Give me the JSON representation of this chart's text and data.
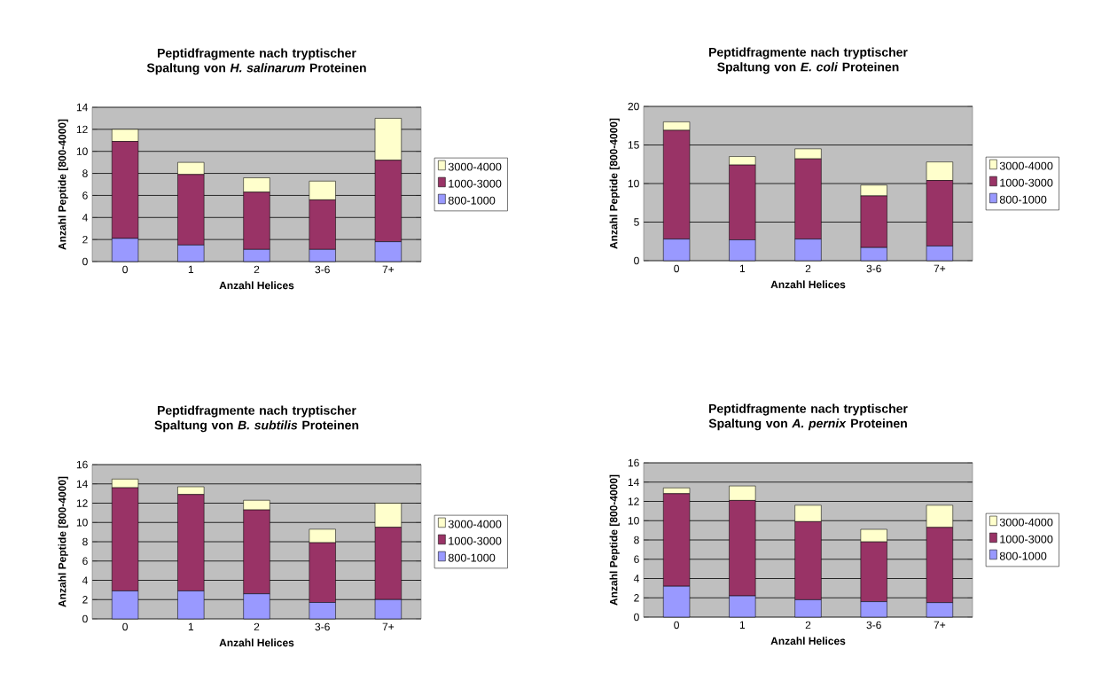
{
  "chart_data": [
    {
      "type": "bar",
      "stacked": true,
      "title": "Peptidfragmente nach tryptischer Spaltung von *H. salinarum* Proteinen",
      "xlabel": "Anzahl Helices",
      "ylabel": "Anzahl Peptide [800-4000]",
      "categories": [
        "0",
        "1",
        "2",
        "3-6",
        "7+"
      ],
      "ylim": [
        0,
        14
      ],
      "yticks": [
        0,
        2,
        4,
        6,
        8,
        10,
        12,
        14
      ],
      "grid": "y",
      "legend": "right",
      "series": [
        {
          "name": "800-1000",
          "color": "#9999ff",
          "values": [
            2.1,
            1.5,
            1.1,
            1.1,
            1.8
          ]
        },
        {
          "name": "1000-3000",
          "color": "#993366",
          "values": [
            8.8,
            6.4,
            5.2,
            4.5,
            7.4
          ]
        },
        {
          "name": "3000-4000",
          "color": "#ffffcc",
          "values": [
            1.1,
            1.1,
            1.3,
            1.7,
            3.8
          ]
        }
      ]
    },
    {
      "type": "bar",
      "stacked": true,
      "title": "Peptidfragmente nach tryptischer Spaltung von *E. coli* Proteinen",
      "xlabel": "Anzahl Helices",
      "ylabel": "Anzahl Peptide [800-4000]",
      "categories": [
        "0",
        "1",
        "2",
        "3-6",
        "7+"
      ],
      "ylim": [
        0,
        20
      ],
      "yticks": [
        0,
        5,
        10,
        15,
        20
      ],
      "grid": "y",
      "legend": "right",
      "series": [
        {
          "name": "800-1000",
          "color": "#9999ff",
          "values": [
            2.8,
            2.7,
            2.8,
            1.7,
            1.9
          ]
        },
        {
          "name": "1000-3000",
          "color": "#993366",
          "values": [
            14.1,
            9.7,
            10.4,
            6.7,
            8.5
          ]
        },
        {
          "name": "3000-4000",
          "color": "#ffffcc",
          "values": [
            1.1,
            1.1,
            1.3,
            1.4,
            2.4
          ]
        }
      ]
    },
    {
      "type": "bar",
      "stacked": true,
      "title": "Peptidfragmente nach tryptischer Spaltung von *B. subtilis* Proteinen",
      "xlabel": "Anzahl Helices",
      "ylabel": "Anzahl Peptide [800-4000]",
      "categories": [
        "0",
        "1",
        "2",
        "3-6",
        "7+"
      ],
      "ylim": [
        0,
        16
      ],
      "yticks": [
        0,
        2,
        4,
        6,
        8,
        10,
        12,
        14,
        16
      ],
      "grid": "y",
      "legend": "right",
      "series": [
        {
          "name": "800-1000",
          "color": "#9999ff",
          "values": [
            2.9,
            2.9,
            2.6,
            1.7,
            2.0
          ]
        },
        {
          "name": "1000-3000",
          "color": "#993366",
          "values": [
            10.7,
            10.0,
            8.7,
            6.2,
            7.5
          ]
        },
        {
          "name": "3000-4000",
          "color": "#ffffcc",
          "values": [
            0.9,
            0.8,
            1.0,
            1.4,
            2.5
          ]
        }
      ]
    },
    {
      "type": "bar",
      "stacked": true,
      "title": "Peptidfragmente nach tryptischer Spaltung von *A. pernix* Proteinen",
      "xlabel": "Anzahl Helices",
      "ylabel": "Anzahl Peptide [800-4000]",
      "categories": [
        "0",
        "1",
        "2",
        "3-6",
        "7+"
      ],
      "ylim": [
        0,
        16
      ],
      "yticks": [
        0,
        2,
        4,
        6,
        8,
        10,
        12,
        14,
        16
      ],
      "grid": "y",
      "legend": "right",
      "series": [
        {
          "name": "800-1000",
          "color": "#9999ff",
          "values": [
            3.2,
            2.2,
            1.8,
            1.6,
            1.5
          ]
        },
        {
          "name": "1000-3000",
          "color": "#993366",
          "values": [
            9.6,
            9.9,
            8.1,
            6.2,
            7.8
          ]
        },
        {
          "name": "3000-4000",
          "color": "#ffffcc",
          "values": [
            0.6,
            1.5,
            1.7,
            1.3,
            2.3
          ]
        }
      ]
    }
  ]
}
